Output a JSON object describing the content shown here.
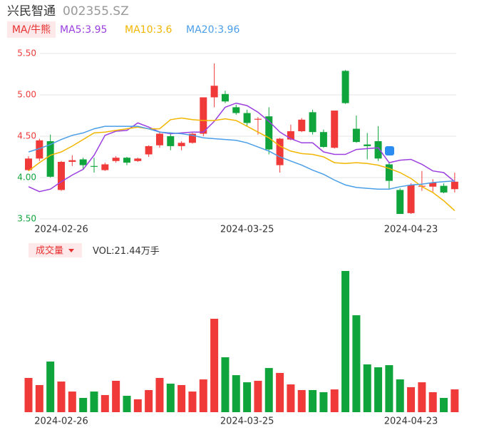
{
  "chart_data": {
    "type": "candlestick",
    "title": "兴民智通",
    "code": "002355.SZ",
    "indicator_button": "MA/牛熊",
    "separator": ":",
    "volume_button": "成交量",
    "volume_prefix": "VOL:",
    "volume_unit": "万手",
    "up_color": "#f03a3a",
    "down_color": "#10a53c",
    "grid": true,
    "categories": [
      null,
      null,
      null,
      "2024-02-26",
      null,
      null,
      null,
      null,
      null,
      null,
      null,
      null,
      null,
      null,
      null,
      null,
      null,
      null,
      null,
      null,
      "2024-03-25",
      null,
      null,
      null,
      null,
      null,
      null,
      null,
      null,
      null,
      null,
      null,
      null,
      null,
      null,
      "2024-04-23",
      null,
      null,
      null,
      null
    ],
    "open": [
      4.09,
      4.23,
      4.44,
      3.85,
      4.19,
      4.22,
      4.14,
      4.09,
      4.2,
      4.24,
      4.2,
      4.28,
      4.39,
      4.5,
      4.38,
      4.42,
      4.53,
      4.97,
      5.01,
      4.85,
      4.78,
      4.7,
      4.74,
      4.15,
      4.46,
      4.56,
      4.79,
      4.55,
      4.36,
      5.29,
      4.59,
      4.4,
      4.44,
      4.16,
      3.85,
      3.57,
      3.89,
      3.89,
      3.9,
      3.86
    ],
    "high": [
      4.26,
      4.47,
      4.52,
      4.2,
      4.27,
      4.24,
      4.24,
      4.18,
      4.26,
      4.25,
      4.24,
      4.39,
      4.56,
      4.53,
      4.44,
      4.54,
      4.97,
      5.38,
      5.05,
      4.88,
      4.82,
      4.73,
      4.85,
      4.48,
      4.64,
      4.72,
      4.82,
      4.58,
      4.81,
      5.3,
      4.75,
      4.54,
      4.62,
      4.19,
      3.87,
      3.93,
      4.08,
      3.98,
      3.93,
      4.06
    ],
    "low": [
      4.08,
      4.2,
      4.0,
      3.84,
      4.14,
      4.1,
      4.06,
      4.08,
      4.18,
      4.15,
      4.19,
      4.25,
      4.36,
      4.33,
      4.33,
      4.41,
      4.5,
      4.85,
      4.9,
      4.76,
      4.62,
      4.52,
      4.28,
      4.06,
      4.45,
      4.55,
      4.52,
      4.36,
      4.35,
      4.89,
      4.42,
      4.22,
      4.2,
      3.86,
      3.56,
      3.56,
      3.84,
      3.83,
      3.81,
      3.82
    ],
    "close": [
      4.23,
      4.45,
      4.01,
      4.19,
      4.21,
      4.15,
      4.13,
      4.16,
      4.24,
      4.18,
      4.23,
      4.38,
      4.53,
      4.38,
      4.42,
      4.53,
      4.97,
      5.11,
      4.92,
      4.78,
      4.66,
      4.71,
      4.34,
      4.47,
      4.56,
      4.7,
      4.55,
      4.37,
      4.81,
      4.9,
      4.43,
      4.38,
      4.23,
      3.96,
      3.56,
      3.91,
      3.9,
      3.94,
      3.82,
      3.95
    ],
    "volume": [
      32.2,
      25.5,
      47.6,
      28.8,
      19.4,
      13.4,
      19.4,
      16.1,
      29.5,
      15.4,
      12.1,
      20.8,
      32.2,
      26.8,
      25.5,
      19.4,
      30.8,
      87.8,
      51.6,
      34.8,
      28.1,
      29.5,
      41.5,
      36.9,
      26.1,
      20.8,
      20.8,
      18.8,
      21.4,
      132.7,
      91.1,
      44.9,
      42.2,
      44.2,
      30.8,
      23.5,
      28.1,
      18.8,
      13.4,
      21.44
    ],
    "series": [
      {
        "name": "MA5",
        "color": "#9b3fe0",
        "values": [
          3.89,
          3.83,
          3.86,
          3.95,
          4.03,
          4.1,
          4.27,
          4.51,
          4.56,
          4.57,
          4.66,
          4.61,
          4.55,
          4.53,
          4.54,
          4.55,
          4.55,
          4.68,
          4.85,
          4.9,
          4.87,
          4.79,
          4.68,
          4.55,
          4.47,
          4.42,
          4.42,
          4.31,
          4.28,
          4.28,
          4.34,
          4.35,
          4.36,
          4.18,
          4.21,
          4.22,
          4.16,
          4.08,
          4.06,
          3.95
        ]
      },
      {
        "name": "MA10",
        "color": "#f2b600",
        "values": [
          4.08,
          4.18,
          4.27,
          4.31,
          4.38,
          4.46,
          4.54,
          4.55,
          4.57,
          4.59,
          4.61,
          4.59,
          4.59,
          4.7,
          4.72,
          4.7,
          4.69,
          4.69,
          4.71,
          4.69,
          4.62,
          4.55,
          4.48,
          4.38,
          4.32,
          4.29,
          4.28,
          4.25,
          4.18,
          4.17,
          4.18,
          4.17,
          4.15,
          4.11,
          4.06,
          3.99,
          3.89,
          3.82,
          3.72,
          3.6
        ]
      },
      {
        "name": "MA20",
        "color": "#4a9ee8",
        "values": [
          4.31,
          4.35,
          4.4,
          4.46,
          4.51,
          4.54,
          4.59,
          4.62,
          4.62,
          4.62,
          4.62,
          4.59,
          4.55,
          4.54,
          4.53,
          4.51,
          4.48,
          4.47,
          4.46,
          4.45,
          4.42,
          4.37,
          4.32,
          4.25,
          4.2,
          4.15,
          4.09,
          4.04,
          3.97,
          3.91,
          3.88,
          3.87,
          3.86,
          3.86,
          3.89,
          3.91,
          3.92,
          3.94,
          3.95,
          3.96
        ]
      }
    ],
    "ylim": [
      3.5,
      5.5
    ],
    "yticks": [
      {
        "value": 5.5,
        "label": "5.50"
      },
      {
        "value": 5.0,
        "label": "5.00"
      },
      {
        "value": 4.5,
        "label": "4.50"
      },
      {
        "value": 4.0,
        "label": "4.00"
      },
      {
        "value": 3.5,
        "label": "3.50"
      }
    ],
    "ytick_colors": [
      "#f03a3a",
      "#f03a3a",
      "#f03a3a",
      "#10a53c",
      "#10a53c"
    ]
  }
}
